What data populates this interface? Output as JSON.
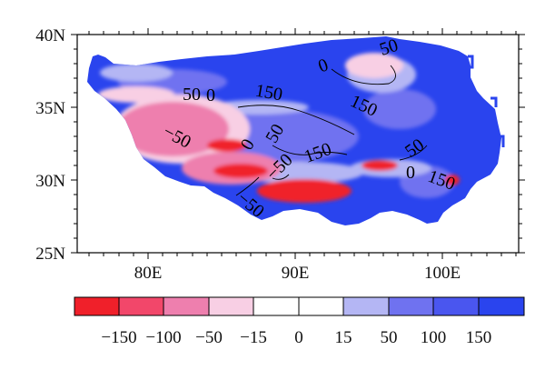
{
  "map": {
    "lat_ticks": [
      "40N",
      "35N",
      "30N",
      "25N"
    ],
    "lon_ticks": [
      "80E",
      "90E",
      "100E"
    ]
  },
  "contour_labels": [
    "50",
    "0",
    "50",
    "0",
    "150",
    "150",
    "-50",
    "0",
    "50",
    "-50",
    "150",
    "50",
    "0",
    "150",
    "-50"
  ],
  "colorbar": {
    "labels": [
      "-150",
      "-100",
      "-50",
      "-15",
      "0",
      "15",
      "50",
      "100",
      "150"
    ],
    "colors": [
      "#f0202a",
      "#f2476a",
      "#ee7fae",
      "#f8cfe4",
      "#ffffff",
      "#ffffff",
      "#b4b6f4",
      "#6f72f0",
      "#2a44ee"
    ]
  },
  "colors": {
    "strong_positive": "#2a44ee",
    "moderate_positive": "#6f72f0",
    "weak_positive": "#b4b6f4",
    "weak_negative": "#f8cfe4",
    "moderate_negative": "#ee7fae",
    "strong_negative": "#f0202a"
  }
}
